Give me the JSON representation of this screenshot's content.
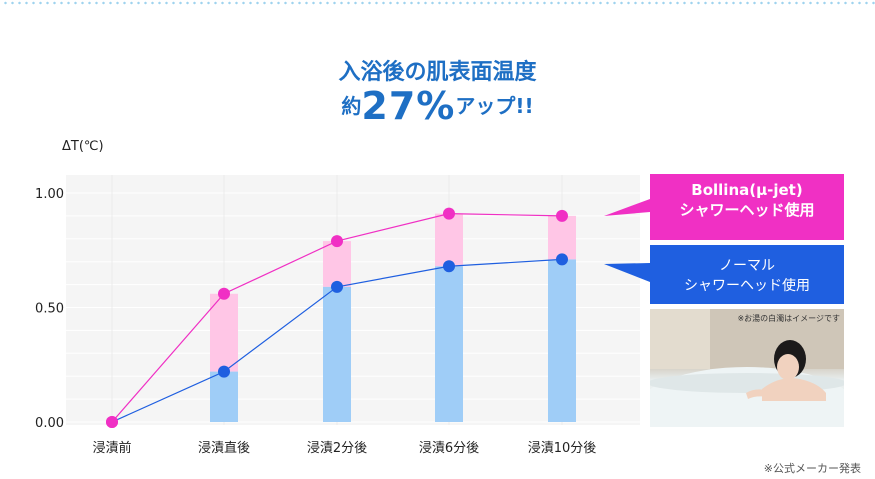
{
  "header": {
    "title_line1": "入浴後の肌表面温度",
    "title_line2_prefix": "約",
    "title_line2_highlight": "27%",
    "title_line2_suffix": "アップ!!"
  },
  "legend": {
    "bollina_line1": "Bollina(μ-jet)",
    "bollina_line2": "シャワーヘッド使用",
    "normal_line1": "ノーマル",
    "normal_line2": "シャワーヘッド使用"
  },
  "photo": {
    "note": "※お湯の白濁はイメージです"
  },
  "footnote": "※公式メーカー発表",
  "colors": {
    "pink": "#f030c4",
    "blue": "#1f5fe0",
    "pink_bar": "#ffc6e6",
    "blue_bar": "#9fcdf7",
    "title": "#1e6fc4"
  },
  "chart_data": {
    "type": "line",
    "title": "入浴後の肌表面温度",
    "ylabel": "ΔT(℃)",
    "xlabel": "",
    "categories": [
      "浸漬前",
      "浸漬直後",
      "浸漬2分後",
      "浸漬6分後",
      "浸漬10分後"
    ],
    "ylim": [
      0,
      1.0
    ],
    "yticks": [
      "0.00",
      "0.50",
      "1.00"
    ],
    "grid": true,
    "series": [
      {
        "name": "Bollina(μ-jet) シャワーヘッド使用",
        "color": "#f030c4",
        "values": [
          0.0,
          0.56,
          0.79,
          0.91,
          0.9
        ]
      },
      {
        "name": "ノーマル シャワーヘッド使用",
        "color": "#1f5fe0",
        "values": [
          0.0,
          0.22,
          0.59,
          0.68,
          0.71
        ]
      }
    ]
  }
}
